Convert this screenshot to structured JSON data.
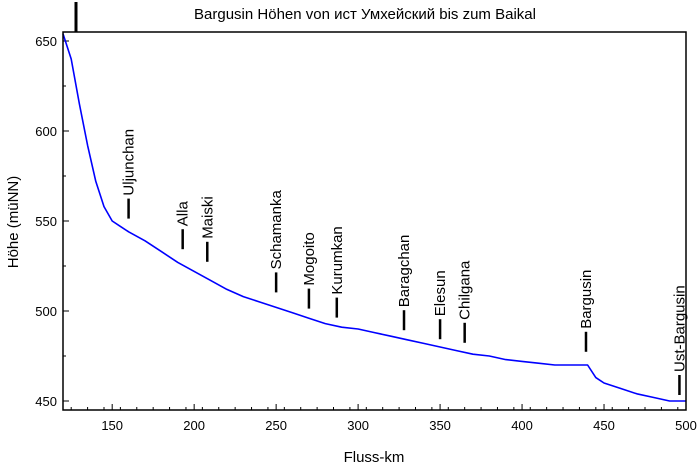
{
  "chart_data": {
    "type": "line",
    "title": "Bargusin Höhen von ист Умхейский bis zum Baikal",
    "xlabel": "Fluss-km",
    "ylabel": "Höhe (müNN)",
    "xlim": [
      120,
      500
    ],
    "ylim": [
      445,
      655
    ],
    "x_ticks": [
      150,
      200,
      250,
      300,
      350,
      400,
      450,
      500
    ],
    "y_ticks": [
      450,
      500,
      550,
      600,
      650
    ],
    "grid": false,
    "line_color": "#0000ff",
    "series": [
      {
        "x": [
          120,
          125,
          130,
          135,
          140,
          145,
          150,
          155,
          160,
          170,
          180,
          190,
          200,
          210,
          220,
          230,
          240,
          250,
          260,
          270,
          280,
          290,
          300,
          310,
          320,
          330,
          340,
          350,
          360,
          370,
          380,
          390,
          400,
          410,
          420,
          430,
          435,
          440,
          445,
          450,
          460,
          470,
          480,
          490,
          500
        ],
        "y": [
          654,
          640,
          615,
          592,
          572,
          558,
          550,
          547,
          544,
          539,
          533,
          527,
          522,
          517,
          512,
          508,
          505,
          502,
          499,
          496,
          493,
          491,
          490,
          488,
          486,
          484,
          482,
          480,
          478,
          476,
          475,
          473,
          472,
          471,
          470,
          470,
          470,
          470,
          463,
          460,
          457,
          454,
          452,
          450,
          450
        ]
      }
    ],
    "annotations": [
      {
        "label": "Uljunchan",
        "x": 160,
        "y": 548
      },
      {
        "label": "Alla",
        "x": 193,
        "y": 531
      },
      {
        "label": "Maiski",
        "x": 208,
        "y": 524
      },
      {
        "label": "Schamanka",
        "x": 250,
        "y": 507
      },
      {
        "label": "Mogoito",
        "x": 270,
        "y": 498
      },
      {
        "label": "Kurumkan",
        "x": 287,
        "y": 493
      },
      {
        "label": "Baragchan",
        "x": 328,
        "y": 486
      },
      {
        "label": "Elesun",
        "x": 350,
        "y": 481
      },
      {
        "label": "Chilgana",
        "x": 365,
        "y": 479
      },
      {
        "label": "Bargusin",
        "x": 439,
        "y": 474
      },
      {
        "label": "Ust-Bargusin",
        "x": 496,
        "y": 450
      }
    ]
  }
}
